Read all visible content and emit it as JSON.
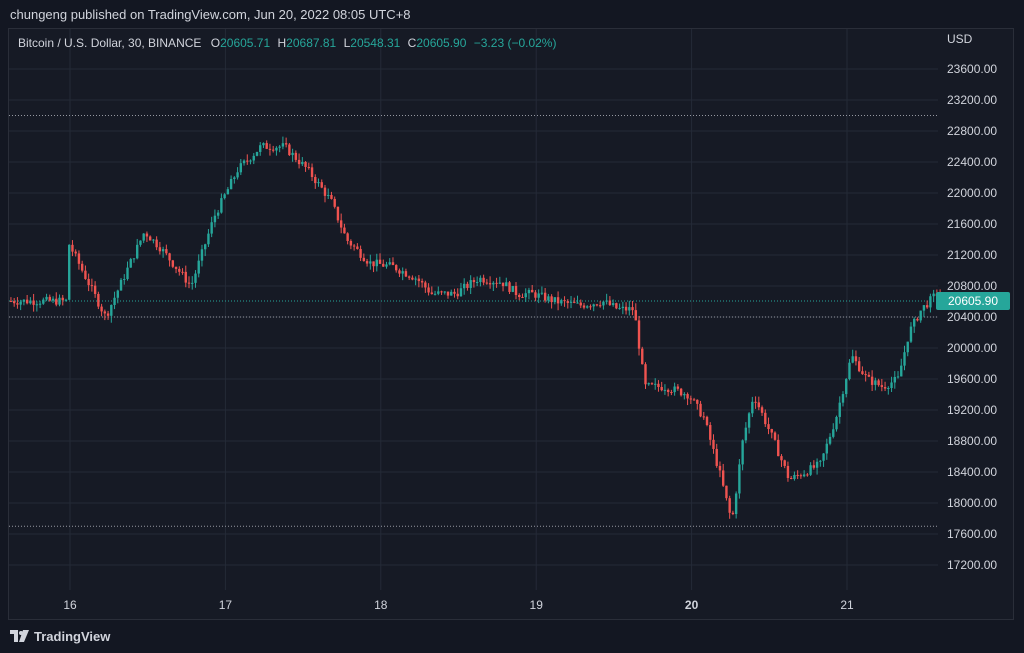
{
  "header": {
    "published": "chungeng published on TradingView.com, Jun 20, 2022 08:05 UTC+8"
  },
  "legend": {
    "symbol": "Bitcoin / U.S. Dollar, 30, BINANCE",
    "o_label": "O",
    "o_value": "20605.71",
    "h_label": "H",
    "h_value": "20687.81",
    "l_label": "L",
    "l_value": "20548.31",
    "c_label": "C",
    "c_value": "20605.90",
    "change": "−3.23 (−0.02%)"
  },
  "currency": "USD",
  "brand": {
    "name": "TradingView",
    "icon": "tradingview-logo-icon"
  },
  "colors": {
    "up": "#26a69a",
    "down": "#ef5350",
    "background": "#161a25",
    "grid": "#242a37",
    "last_price_bg": "#26a69a"
  },
  "chart_data": {
    "type": "candlestick",
    "y_ticks": [
      17200,
      17600,
      18000,
      18400,
      18800,
      19200,
      19600,
      20000,
      20400,
      20800,
      21200,
      21600,
      22000,
      22400,
      22800,
      23200,
      23600
    ],
    "ylim": [
      16950,
      23850
    ],
    "x_ticks": [
      "16",
      "17",
      "18",
      "19",
      "20",
      "21"
    ],
    "last_price": 20605.9,
    "last_price_label": "20605.90",
    "reference_lines": [
      23000,
      20400,
      17700
    ],
    "path": [
      [
        0.0,
        21400
      ],
      [
        0.25,
        20400
      ],
      [
        0.5,
        21500
      ],
      [
        0.6,
        21300
      ],
      [
        0.8,
        20800
      ],
      [
        0.95,
        21700
      ],
      [
        1.1,
        22300
      ],
      [
        1.25,
        22600
      ],
      [
        1.4,
        22600
      ],
      [
        1.55,
        22300
      ],
      [
        1.7,
        21900
      ],
      [
        1.8,
        21400
      ],
      [
        1.95,
        21100
      ],
      [
        2.1,
        21050
      ],
      [
        2.25,
        20900
      ],
      [
        2.35,
        20700
      ],
      [
        2.5,
        20700
      ],
      [
        2.65,
        20900
      ],
      [
        2.8,
        20850
      ],
      [
        2.9,
        20700
      ],
      [
        3.0,
        20700
      ],
      [
        3.15,
        20600
      ],
      [
        3.3,
        20550
      ],
      [
        3.45,
        20600
      ],
      [
        3.55,
        20500
      ],
      [
        3.65,
        20500
      ],
      [
        3.72,
        19500
      ],
      [
        3.85,
        19500
      ],
      [
        4.0,
        19400
      ],
      [
        4.1,
        19100
      ],
      [
        4.2,
        18400
      ],
      [
        4.28,
        17750
      ],
      [
        4.35,
        18800
      ],
      [
        4.42,
        19400
      ],
      [
        4.55,
        18800
      ],
      [
        4.65,
        18300
      ],
      [
        4.75,
        18400
      ],
      [
        4.85,
        18500
      ],
      [
        4.95,
        19100
      ],
      [
        5.05,
        19900
      ],
      [
        5.15,
        19600
      ],
      [
        5.25,
        19500
      ],
      [
        5.35,
        19600
      ],
      [
        5.42,
        20200
      ],
      [
        5.5,
        20500
      ],
      [
        5.6,
        20700
      ],
      [
        5.65,
        20606
      ]
    ]
  }
}
